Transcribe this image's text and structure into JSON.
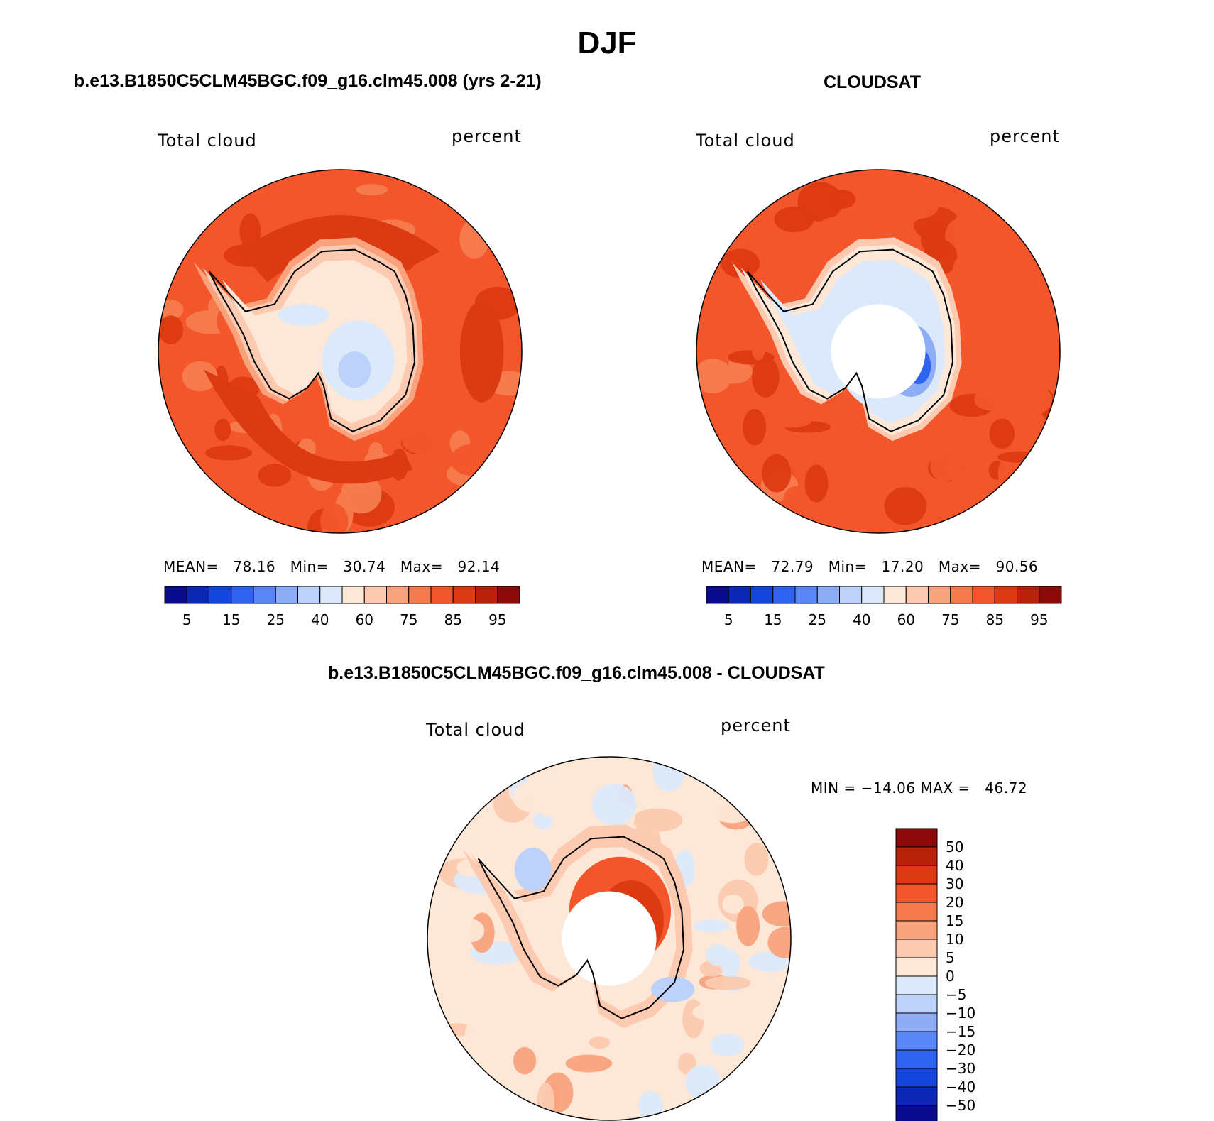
{
  "figure": {
    "title": "DJF",
    "panel1_title": "b.e13.B1850C5CLM45BGC.f09_g16.clm45.008 (yrs 2-21)",
    "panel2_title": "CLOUDSAT",
    "panel3_title": "b.e13.B1850C5CLM45BGC.f09_g16.clm45.008 - CLOUDSAT"
  },
  "colors": {
    "seq": [
      "#0a0a8c",
      "#0a28b4",
      "#1446dc",
      "#2e64f0",
      "#5a87f5",
      "#8eadf7",
      "#bcd2fa",
      "#dce9fb",
      "#fde7d6",
      "#fccab0",
      "#f9a37e",
      "#f67c4e",
      "#f2562a",
      "#dc3a12",
      "#b9220a",
      "#8c0a0a"
    ],
    "diff": [
      "#0a0a8c",
      "#0a28b4",
      "#1446dc",
      "#2e64f0",
      "#5a87f5",
      "#8eadf7",
      "#bcd2fa",
      "#dce9fb",
      "#fde7d6",
      "#fccab0",
      "#f9a37e",
      "#f67c4e",
      "#f2562a",
      "#dc3a12",
      "#b9220a",
      "#8c0a0a"
    ],
    "continent_line": "#000000",
    "missing": "#ffffff"
  },
  "chart_data": [
    {
      "type": "heatmap",
      "projection": "south polar stereographic",
      "title": "b.e13.B1850C5CLM45BGC.f09_g16.clm45.008 (yrs 2-21)",
      "left_label": "Total cloud",
      "right_label": "percent",
      "variable": "Total cloud",
      "units": "percent",
      "stats_text": "MEAN=   78.16   Min=   30.74   Max=   92.14",
      "stats": {
        "mean": 78.16,
        "min": 30.74,
        "max": 92.14
      },
      "levels": [
        "5",
        "10",
        "15",
        "20",
        "25",
        "30",
        "40",
        "50",
        "60",
        "70",
        "75",
        "80",
        "85",
        "90",
        "95"
      ],
      "tick_labels": [
        "5",
        "15",
        "25",
        "40",
        "60",
        "75",
        "85",
        "95"
      ],
      "field": {
        "ocean_outer_mean": 82,
        "ring_peak": 89,
        "coast_value": 62,
        "interior_value": 55,
        "interior_minimum_region": 36,
        "pole_hole": false
      }
    },
    {
      "type": "heatmap",
      "projection": "south polar stereographic",
      "title": "CLOUDSAT",
      "left_label": "Total cloud",
      "right_label": "percent",
      "variable": "Total cloud",
      "units": "percent",
      "stats_text": "MEAN=   72.79   Min=   17.20   Max=   90.56",
      "stats": {
        "mean": 72.79,
        "min": 17.2,
        "max": 90.56
      },
      "levels": [
        "5",
        "10",
        "15",
        "20",
        "25",
        "30",
        "40",
        "50",
        "60",
        "70",
        "75",
        "80",
        "85",
        "90",
        "95"
      ],
      "tick_labels": [
        "5",
        "15",
        "25",
        "40",
        "60",
        "75",
        "85",
        "95"
      ],
      "field": {
        "ocean_outer_mean": 84,
        "ring_peak": 86,
        "coast_value": 58,
        "interior_value": 42,
        "interior_minimum_region": 18,
        "pole_hole": true
      }
    },
    {
      "type": "heatmap",
      "projection": "south polar stereographic",
      "title": "b.e13.B1850C5CLM45BGC.f09_g16.clm45.008 - CLOUDSAT",
      "left_label": "Total cloud",
      "right_label": "percent",
      "variable": "Total cloud difference",
      "units": "percent",
      "stats_text": "MIN = −14.06 MAX =   46.72",
      "stats": {
        "min": -14.06,
        "max": 46.72
      },
      "levels": [
        "-50",
        "-40",
        "-30",
        "-20",
        "-15",
        "-10",
        "-5",
        "0",
        "5",
        "10",
        "15",
        "20",
        "30",
        "40",
        "50"
      ],
      "tick_labels": [
        "50",
        "40",
        "30",
        "20",
        "15",
        "10",
        "5",
        "0",
        "−5",
        "−10",
        "−15",
        "−20",
        "−30",
        "−40",
        "−50"
      ],
      "field": {
        "ocean_outer_mean": 3,
        "coast_value": 8,
        "interior_max_region": 38,
        "interior_min_region": -10,
        "pole_hole": true
      }
    }
  ]
}
